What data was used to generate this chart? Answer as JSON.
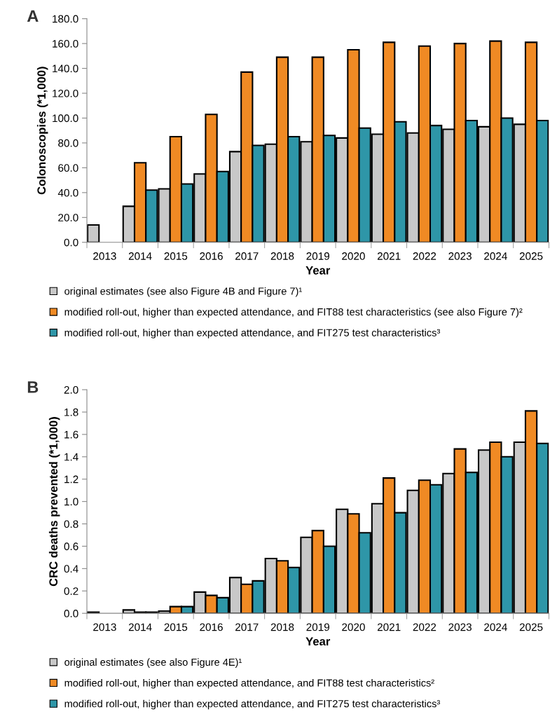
{
  "chart_data": [
    {
      "type": "bar",
      "title": "A",
      "xlabel": "Year",
      "ylabel": "Colonoscopies (*1,000)",
      "categories": [
        "2013",
        "2014",
        "2015",
        "2016",
        "2017",
        "2018",
        "2019",
        "2020",
        "2021",
        "2022",
        "2023",
        "2024",
        "2025"
      ],
      "series": [
        {
          "name": "original estimates (see also Figure 4B and Figure 7)¹",
          "color": "#c8c8c8",
          "values": [
            14,
            29,
            43,
            55,
            73,
            79,
            81,
            84,
            87,
            88,
            91,
            93,
            95
          ]
        },
        {
          "name": "modified roll-out, higher than expected attendance, and FIT88 test characteristics (see also Figure 7)²",
          "color": "#f08a24",
          "values": [
            null,
            64,
            85,
            103,
            137,
            149,
            149,
            155,
            161,
            158,
            160,
            162,
            161
          ]
        },
        {
          "name": "modified roll-out, higher than expected attendance, and FIT275 test characteristics³",
          "color": "#2e96a8",
          "values": [
            null,
            42,
            47,
            57,
            78,
            85,
            86,
            92,
            97,
            94,
            98,
            100,
            98
          ]
        }
      ],
      "ylim": [
        0,
        180
      ],
      "yticks": [
        {
          "value": 0,
          "label": "0.0"
        },
        {
          "value": 20,
          "label": "20.0"
        },
        {
          "value": 40,
          "label": "40.0"
        },
        {
          "value": 60,
          "label": "60.0"
        },
        {
          "value": 80,
          "label": "80.0"
        },
        {
          "value": 100,
          "label": "100.0"
        },
        {
          "value": 120,
          "label": "120.0"
        },
        {
          "value": 140,
          "label": "140.0"
        },
        {
          "value": 160,
          "label": "160.0"
        },
        {
          "value": 180,
          "label": "180.0"
        }
      ],
      "legend": "bottom",
      "grid": false
    },
    {
      "type": "bar",
      "title": "B",
      "xlabel": "Year",
      "ylabel": "CRC deaths prevented (*1,000)",
      "categories": [
        "2013",
        "2014",
        "2015",
        "2016",
        "2017",
        "2018",
        "2019",
        "2020",
        "2021",
        "2022",
        "2023",
        "2024",
        "2025"
      ],
      "series": [
        {
          "name": "original estimates (see also Figure 4E)¹",
          "color": "#c8c8c8",
          "values": [
            0.01,
            0.03,
            0.02,
            0.19,
            0.32,
            0.49,
            0.68,
            0.93,
            0.98,
            1.1,
            1.25,
            1.46,
            1.53
          ]
        },
        {
          "name": "modified roll-out, higher than expected attendance, and FIT88 test characteristics²",
          "color": "#f08a24",
          "values": [
            null,
            0.01,
            0.06,
            0.16,
            0.26,
            0.47,
            0.74,
            0.89,
            1.21,
            1.19,
            1.47,
            1.53,
            1.81
          ]
        },
        {
          "name": "modified roll-out, higher than expected attendance, and FIT275 test characteristics³",
          "color": "#2e96a8",
          "values": [
            null,
            0.01,
            0.06,
            0.14,
            0.29,
            0.41,
            0.6,
            0.72,
            0.9,
            1.15,
            1.26,
            1.4,
            1.52
          ]
        }
      ],
      "ylim": [
        0,
        2
      ],
      "yticks": [
        {
          "value": 0,
          "label": "0.0"
        },
        {
          "value": 0.2,
          "label": "0.2"
        },
        {
          "value": 0.4,
          "label": "0.4"
        },
        {
          "value": 0.6,
          "label": "0.6"
        },
        {
          "value": 0.8,
          "label": "0.8"
        },
        {
          "value": 1.0,
          "label": "1.0"
        },
        {
          "value": 1.2,
          "label": "1.2"
        },
        {
          "value": 1.4,
          "label": "1.4"
        },
        {
          "value": 1.6,
          "label": "1.6"
        },
        {
          "value": 1.8,
          "label": "1.8"
        },
        {
          "value": 2.0,
          "label": "2.0"
        }
      ],
      "legend": "bottom",
      "grid": false
    }
  ]
}
